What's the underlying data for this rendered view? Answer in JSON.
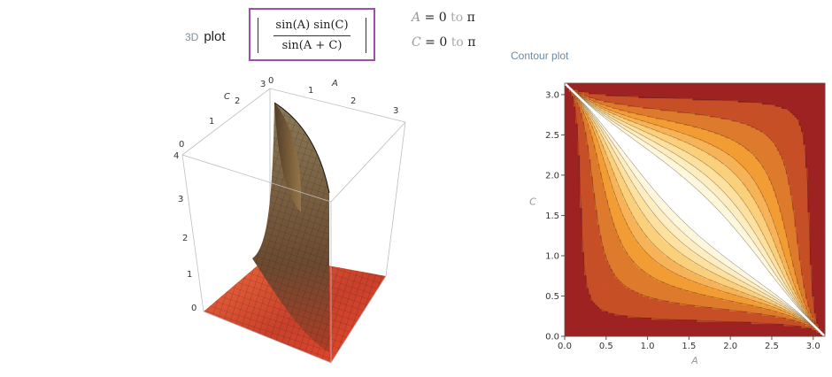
{
  "header_3d": {
    "tag": "3D",
    "label": "plot"
  },
  "formula": {
    "numerator": "sin(A)  sin(C)",
    "denominator": "sin(A + C)"
  },
  "ranges": [
    {
      "var": "A",
      "eq": "=",
      "from": "0",
      "to_word": "to",
      "to": "π"
    },
    {
      "var": "C",
      "eq": "=",
      "from": "0",
      "to_word": "to",
      "to": "π"
    }
  ],
  "contour_title": "Contour plot",
  "plot3d": {
    "a_label": "A",
    "c_label": "C",
    "a_ticks": [
      "0",
      "1",
      "2",
      "3"
    ],
    "c_ticks": [
      "0",
      "1",
      "2",
      "3"
    ],
    "z_ticks": [
      "0",
      "1",
      "2",
      "3",
      "4"
    ],
    "colors": {
      "surface_low": "#e8492f",
      "surface_high": "#6e5a3a",
      "mesh": "#2a1a12",
      "box": "#bdbdbd"
    }
  },
  "chart_data": {
    "type": "heatmap",
    "title": "",
    "function": "|sin(A) sin(C) / sin(A + C)|",
    "xlabel": "A",
    "ylabel": "C",
    "xlim": [
      0,
      3.14159
    ],
    "ylim": [
      0,
      3.14159
    ],
    "x_ticks": [
      "0.0",
      "0.5",
      "1.0",
      "1.5",
      "2.0",
      "2.5",
      "3.0"
    ],
    "y_ticks": [
      "0.0",
      "0.5",
      "1.0",
      "1.5",
      "2.0",
      "2.5",
      "3.0"
    ],
    "contour_levels": [
      0.2,
      0.4,
      0.6,
      0.8,
      1.0,
      1.3,
      1.7,
      2.3,
      3.5
    ],
    "colors": [
      "#9e2222",
      "#c74f26",
      "#de7a2c",
      "#f29c34",
      "#f7b358",
      "#fad07d",
      "#fce1a0",
      "#fdedc0",
      "#fef7dc",
      "#ffffff"
    ],
    "grid": false,
    "legend": "none"
  }
}
